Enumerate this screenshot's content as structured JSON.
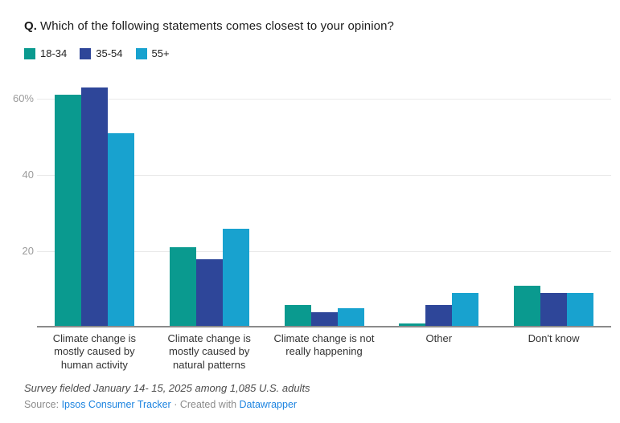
{
  "header": {
    "q_prefix": "Q.",
    "title": "Which of the following statements comes closest to your opinion?"
  },
  "legend": [
    {
      "label": "18-34",
      "color": "#0a9a8f"
    },
    {
      "label": "35-54",
      "color": "#2e4699"
    },
    {
      "label": "55+",
      "color": "#18a2cf"
    }
  ],
  "chart_data": {
    "type": "bar",
    "categories": [
      "Climate change is mostly caused by human activity",
      "Climate change is mostly caused by natural patterns",
      "Climate change is not really happening",
      "Other",
      "Don't know"
    ],
    "series": [
      {
        "name": "18-34",
        "color": "#0a9a8f",
        "values": [
          61,
          21,
          6,
          1,
          11
        ]
      },
      {
        "name": "35-54",
        "color": "#2e4699",
        "values": [
          63,
          18,
          4,
          6,
          9
        ]
      },
      {
        "name": "55+",
        "color": "#18a2cf",
        "values": [
          51,
          26,
          5,
          9,
          9
        ]
      }
    ],
    "ylim": [
      0,
      66
    ],
    "yticks": [
      {
        "value": 20,
        "label": "20"
      },
      {
        "value": 40,
        "label": "40"
      },
      {
        "value": 60,
        "label": "60%"
      }
    ],
    "grid": "horizontal",
    "legend_position": "top",
    "xlabel": "",
    "ylabel": ""
  },
  "footer": {
    "note": "Survey fielded January 14- 15, 2025 among 1,085 U.S. adults",
    "source_prefix": "Source: ",
    "source_link": "Ipsos Consumer Tracker",
    "separator": " · ",
    "created_prefix": "Created with ",
    "created_link": "Datawrapper"
  },
  "colors": {
    "link": "#1d84e0",
    "baseline": "#8b8b8b",
    "gridline": "#e9e9e9",
    "tick_text": "#9b9b9b"
  }
}
